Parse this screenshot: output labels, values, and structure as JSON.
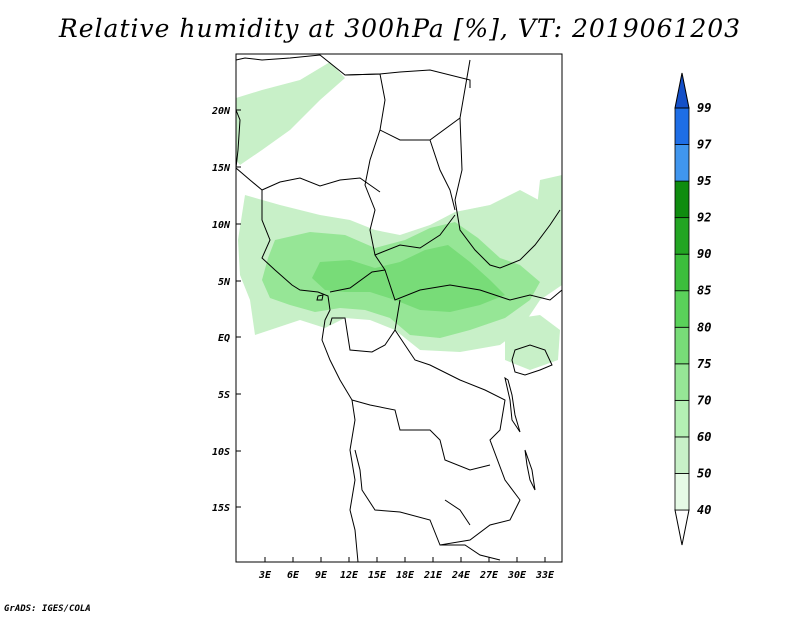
{
  "title": "Relative humidity at 300hPa [%], VT: 2019061203",
  "credit": "GrADS: IGES/COLA",
  "lat_ticks": [
    "20N",
    "15N",
    "10N",
    "5N",
    "EQ",
    "5S",
    "10S",
    "15S"
  ],
  "lon_ticks": [
    "3E",
    "6E",
    "9E",
    "12E",
    "15E",
    "18E",
    "21E",
    "24E",
    "27E",
    "30E",
    "33E"
  ],
  "colorbar": {
    "levels": [
      "40",
      "50",
      "60",
      "70",
      "75",
      "80",
      "85",
      "90",
      "92",
      "95",
      "97",
      "99"
    ],
    "colors": [
      "#ffffff",
      "#e6fae6",
      "#c8f0c8",
      "#b4f0b4",
      "#96e696",
      "#78dc78",
      "#5ad25a",
      "#3cbe3c",
      "#23a523",
      "#0f8c0f",
      "#4096ee",
      "#1e6ee6",
      "#1450c8"
    ]
  }
}
